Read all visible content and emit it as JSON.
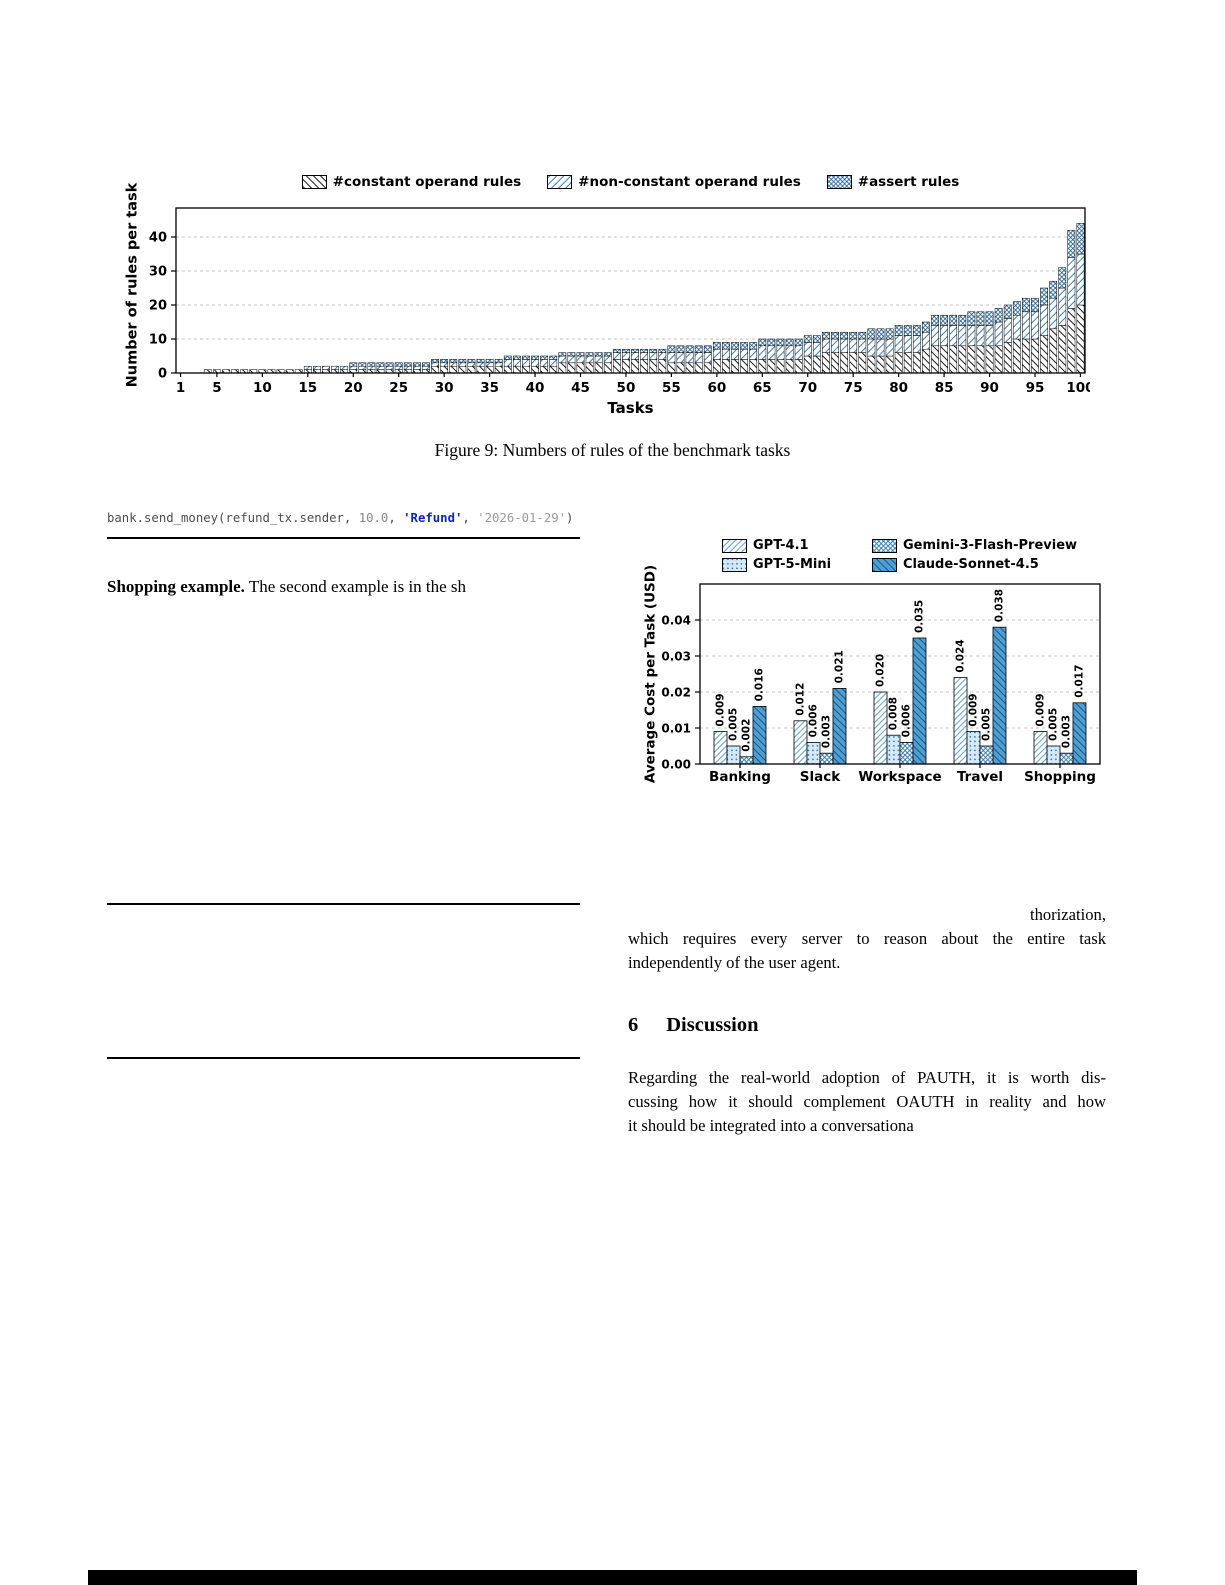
{
  "figure9": {
    "legend": [
      {
        "label": "#constant operand rules",
        "pattern": "black-backslash-hatch"
      },
      {
        "label": "#non-constant operand rules",
        "pattern": "blue-slash-hatch"
      },
      {
        "label": "#assert rules",
        "pattern": "blue-cross-hatch"
      }
    ],
    "ylabel": "Number of rules per task",
    "xlabel": "Tasks",
    "caption": "Figure 9: Numbers of rules of the benchmark tasks"
  },
  "cost_chart": {
    "ylabel": "Average Cost per Task (USD)"
  },
  "chart_data": [
    {
      "type": "bar",
      "stacked": true,
      "xlabel": "Tasks",
      "ylabel": "Number of rules per task",
      "n_tasks": 100,
      "xticks": [
        1,
        5,
        10,
        15,
        20,
        25,
        30,
        35,
        40,
        45,
        50,
        55,
        60,
        65,
        70,
        75,
        80,
        85,
        90,
        95,
        100
      ],
      "yticks": [
        0,
        10,
        20,
        30,
        40
      ],
      "ylim": [
        0,
        48
      ],
      "grid": "dashed-horizontal",
      "series": [
        {
          "name": "#constant operand rules",
          "values": [
            0,
            0,
            0,
            1,
            1,
            1,
            1,
            1,
            1,
            1,
            1,
            1,
            1,
            1,
            1,
            1,
            1,
            1,
            1,
            1,
            1,
            1,
            1,
            1,
            1,
            1,
            1,
            1,
            2,
            2,
            2,
            2,
            2,
            2,
            2,
            2,
            2,
            2,
            2,
            2,
            2,
            2,
            3,
            3,
            3,
            3,
            3,
            3,
            4,
            4,
            4,
            4,
            4,
            4,
            3,
            3,
            3,
            3,
            3,
            4,
            4,
            4,
            4,
            4,
            4,
            4,
            4,
            4,
            4,
            5,
            5,
            6,
            6,
            6,
            6,
            6,
            5,
            5,
            5,
            6,
            6,
            6,
            7,
            8,
            8,
            8,
            8,
            8,
            8,
            8,
            8,
            9,
            10,
            10,
            10,
            11,
            13,
            14,
            19,
            20
          ]
        },
        {
          "name": "#non-constant operand rules",
          "values": [
            0,
            0,
            0,
            0,
            0,
            0,
            0,
            0,
            0,
            0,
            0,
            0,
            0,
            0,
            1,
            1,
            1,
            1,
            1,
            1,
            1,
            1,
            1,
            1,
            1,
            1,
            1,
            1,
            1,
            1,
            1,
            1,
            1,
            1,
            1,
            1,
            2,
            2,
            2,
            2,
            2,
            2,
            2,
            2,
            2,
            2,
            2,
            2,
            2,
            2,
            2,
            2,
            2,
            2,
            3,
            3,
            3,
            3,
            3,
            3,
            3,
            3,
            3,
            3,
            4,
            4,
            4,
            4,
            4,
            4,
            4,
            4,
            4,
            4,
            4,
            4,
            5,
            5,
            5,
            5,
            5,
            5,
            5,
            6,
            6,
            6,
            6,
            6,
            6,
            6,
            7,
            7,
            7,
            8,
            8,
            9,
            9,
            11,
            15,
            15
          ]
        },
        {
          "name": "#assert rules",
          "values": [
            0,
            0,
            0,
            0,
            0,
            0,
            0,
            0,
            0,
            0,
            0,
            0,
            0,
            0,
            0,
            0,
            0,
            0,
            0,
            1,
            1,
            1,
            1,
            1,
            1,
            1,
            1,
            1,
            1,
            1,
            1,
            1,
            1,
            1,
            1,
            1,
            1,
            1,
            1,
            1,
            1,
            1,
            1,
            1,
            1,
            1,
            1,
            1,
            1,
            1,
            1,
            1,
            1,
            1,
            2,
            2,
            2,
            2,
            2,
            2,
            2,
            2,
            2,
            2,
            2,
            2,
            2,
            2,
            2,
            2,
            2,
            2,
            2,
            2,
            2,
            2,
            3,
            3,
            3,
            3,
            3,
            3,
            3,
            3,
            3,
            3,
            3,
            4,
            4,
            4,
            4,
            4,
            4,
            4,
            4,
            5,
            5,
            6,
            8,
            9
          ]
        }
      ]
    },
    {
      "type": "bar",
      "grouped": true,
      "categories": [
        "Banking",
        "Slack",
        "Workspace",
        "Travel",
        "Shopping"
      ],
      "series": [
        {
          "name": "GPT-4.1",
          "values": [
            0.009,
            0.012,
            0.02,
            0.024,
            0.009
          ]
        },
        {
          "name": "GPT-5-Mini",
          "values": [
            0.005,
            0.006,
            0.008,
            0.009,
            0.005
          ]
        },
        {
          "name": "Gemini-3-Flash-Preview",
          "values": [
            0.002,
            0.003,
            0.006,
            0.005,
            0.003
          ]
        },
        {
          "name": "Claude-Sonnet-4.5",
          "values": [
            0.016,
            0.021,
            0.035,
            0.038,
            0.017
          ]
        }
      ],
      "ylabel": "Average Cost per Task (USD)",
      "yticks": [
        0,
        0.01,
        0.02,
        0.03,
        0.04
      ],
      "ylim": [
        0,
        0.05
      ],
      "grid": "dashed-horizontal",
      "bar_labels": "values-rotated-90",
      "accent_colors": {
        "light_blue": "#d4e9f6",
        "mid_blue": "#4f9fd3",
        "dark_blue": "#2f77ad"
      }
    }
  ],
  "code": {
    "segments": [
      {
        "text": "bank.send_money(refund_tx.sender, ",
        "color": "#4d4d4d",
        "bold": false
      },
      {
        "text": "10.0",
        "color": "#8a8a8a",
        "bold": false
      },
      {
        "text": ", ",
        "color": "#4d4d4d",
        "bold": false
      },
      {
        "text": "'Refund'",
        "color": "#0a23c4",
        "bold": true
      },
      {
        "text": ", ",
        "color": "#4d4d4d",
        "bold": false
      },
      {
        "text": "'2026-01-29'",
        "color": "#9a9a9a",
        "bold": false
      },
      {
        "text": ")",
        "color": "#4d4d4d",
        "bold": false
      }
    ]
  },
  "shopping": {
    "lead": "Shopping example.",
    "rest": " The second example is in the sh"
  },
  "right_column": {
    "fragment_lines": [
      "thorization,",
      "which requires every server to reason about the entire task",
      "independently of the user agent."
    ]
  },
  "discussion": {
    "number": "6",
    "title": "Discussion",
    "lines": [
      "Regarding the real-world adoption of PAUTH, it is worth dis-",
      "cussing how it should complement OAUTH in reality and how",
      "it should be integrated into a conversationa"
    ]
  }
}
